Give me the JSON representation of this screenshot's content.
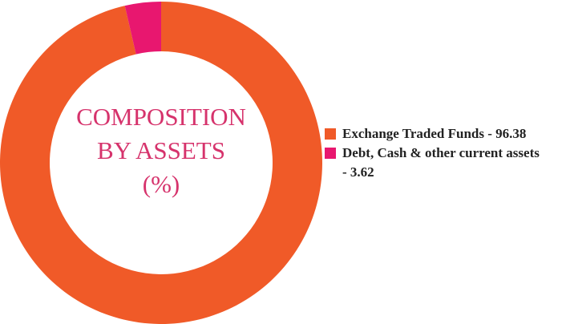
{
  "chart_data": {
    "type": "donut",
    "title": [
      "COMPOSITION",
      "BY ASSETS",
      "(%)"
    ],
    "categories": [
      "Exchange Traded Funds - 96.38",
      "Debt, Cash & other current assets - 3.62"
    ],
    "values": [
      96.38,
      3.62
    ],
    "colors": [
      "#f05a28",
      "#e8176f"
    ],
    "title_color": "#d6336c"
  }
}
